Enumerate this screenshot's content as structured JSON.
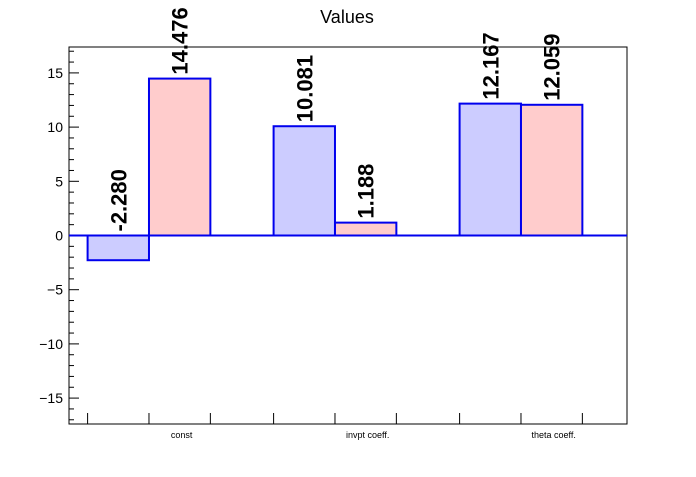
{
  "chart_data": {
    "type": "bar",
    "title": "Values",
    "xlabel": "",
    "ylabel": "",
    "categories": [
      "const",
      "invpt coeff.",
      "theta coeff."
    ],
    "series": [
      {
        "values": [
          -2.28,
          10.081,
          12.167
        ],
        "fill": "#ccccff",
        "stroke": "#0000ee"
      },
      {
        "values": [
          14.476,
          1.188,
          12.059
        ],
        "fill": "#ffcccc",
        "stroke": "#0000ee"
      }
    ],
    "data_labels": [
      [
        "-2.280",
        "10.081",
        "12.167"
      ],
      [
        "14.476",
        "1.188",
        "12.059"
      ]
    ],
    "ylim": [
      -17.39,
      17.39
    ],
    "yticks": [
      -15,
      -10,
      -5,
      0,
      5,
      10,
      15
    ],
    "ytick_labels": [
      "−15",
      "−10",
      "−5",
      "0",
      "5",
      "10",
      "15"
    ],
    "grid": false,
    "legend": "none"
  }
}
